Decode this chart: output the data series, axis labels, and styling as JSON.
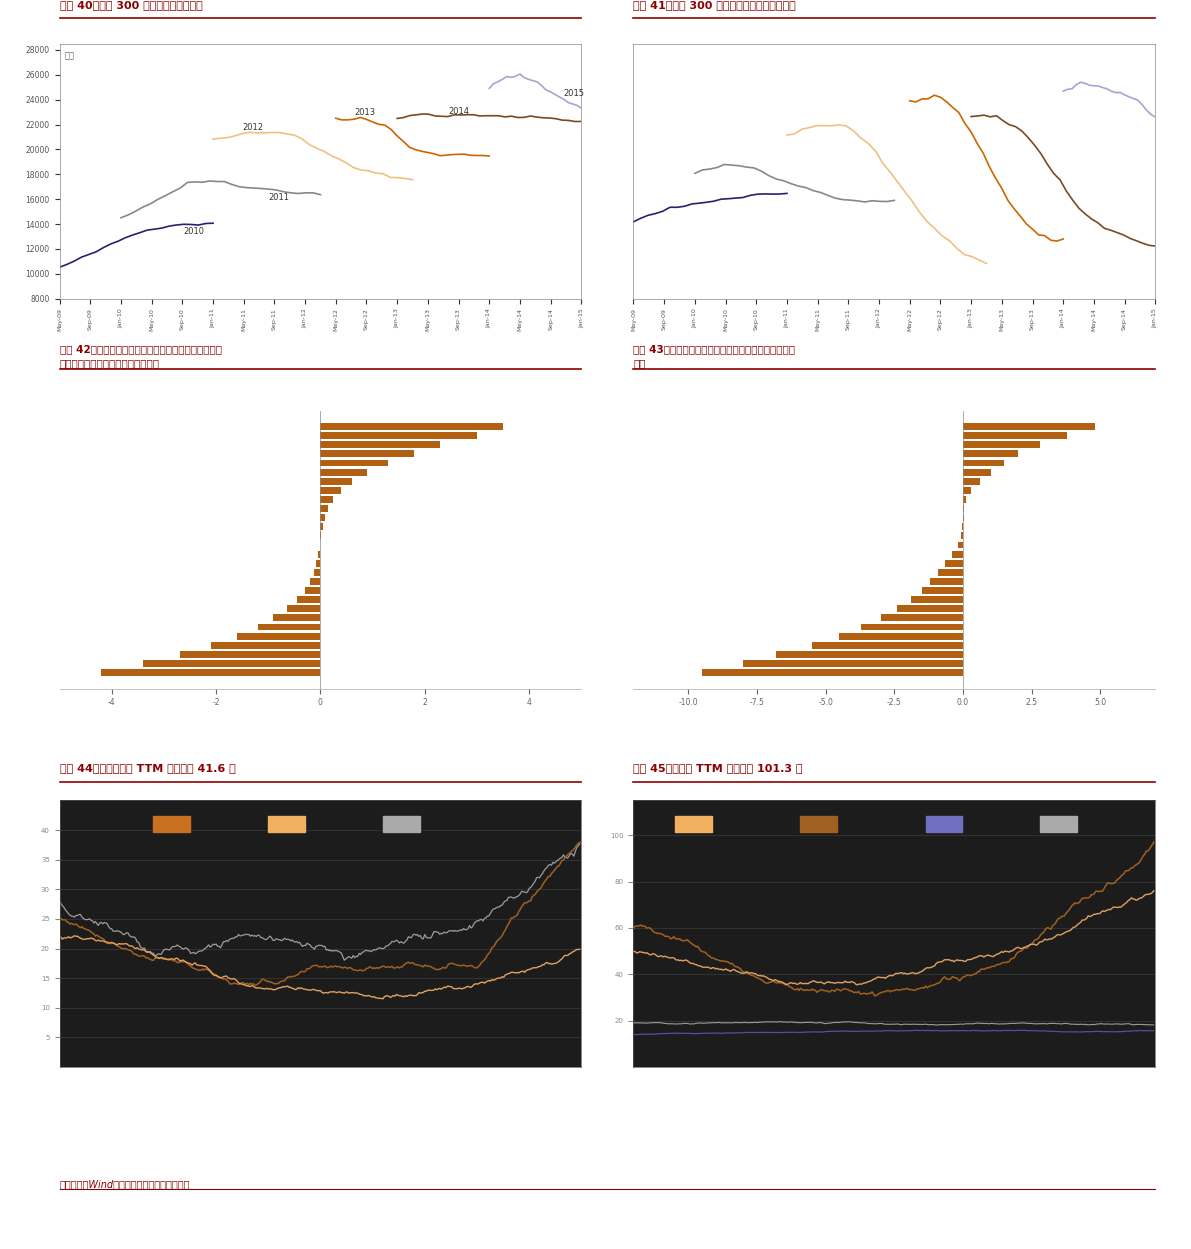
{
  "title_color": "#8B0000",
  "bg_color": "#ffffff",
  "plot_bg_40": "#ffffff",
  "plot_bg_41": "#ffffff",
  "plot_bg_42": "#ffffff",
  "plot_bg_43": "#ffffff",
  "plot_bg_44": "#1a1a1a",
  "plot_bg_45": "#1a1a1a",
  "text_color": "#000000",
  "axis_color": "#aaaaaa",
  "grid_color_44": "#444444",
  "fig40_title": "图表 40：沪深 300 成分预测净利润变动",
  "fig41_title": "图表 41：沪深 300 非金融成分预测净利润变动",
  "fig42_title": "图表 42：上周食品饮料和石油石化等行业市场一致预期\n有所上调，有色金属等行业有所下调",
  "fig43_title": "图表 43：年初至今石油石化、煤炭等行业盈利下调幅度\n较大",
  "fig44_title": "图表 44：非银行板块 TTM 市盈率为 41.6 倍",
  "fig45_title": "图表 45：创业板 TTM 市盈率为 101.3 倍",
  "source_text": "资料来源：Wind，朝阳永续，中金公司研究部",
  "line_colors_40": [
    "#2d1f6e",
    "#888888",
    "#f0c080",
    "#cc6600",
    "#7a4a20",
    "#b0a0d0"
  ],
  "line_labels_40": [
    "2010",
    "2011",
    "2012",
    "2013",
    "2014",
    "2015"
  ],
  "bar_color_42": "#b06010",
  "bar_color_43": "#b06010",
  "line_colors_44_legend": [
    "#c87020",
    "#f0c080",
    "#aaaaaa"
  ],
  "line_colors_44": [
    "#c87020",
    "#f0c080",
    "#aaaaaa"
  ],
  "line_colors_45_legend": [
    "#f0c080",
    "#a07830",
    "#5050a0",
    "#aaaaaa"
  ],
  "line_colors_45": [
    "#f0c080",
    "#a07830",
    "#4040a0",
    "#aaaaaa"
  ],
  "footer_line": true
}
